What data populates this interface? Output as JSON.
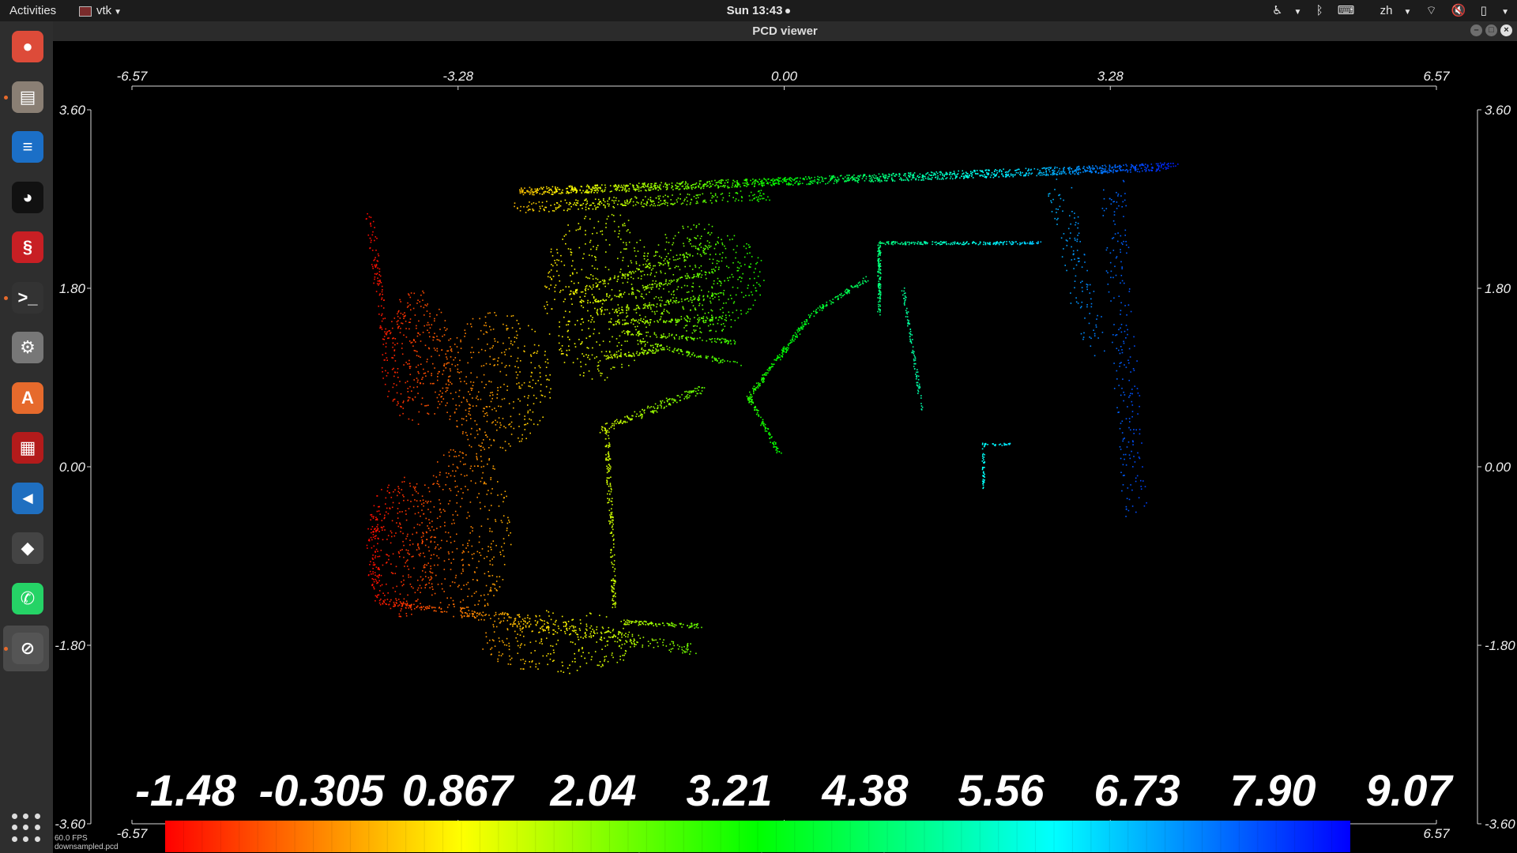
{
  "topbar": {
    "activities": "Activities",
    "app_name": "vtk",
    "clock": "Sun 13:43",
    "input_method": "zh"
  },
  "dock": {
    "items": [
      {
        "name": "chrome",
        "color": "#dd4b39",
        "glyph": "●",
        "running": false
      },
      {
        "name": "files",
        "color": "#8a7f74",
        "glyph": "▤",
        "running": true
      },
      {
        "name": "writer",
        "color": "#1b6fc7",
        "glyph": "≡",
        "running": false
      },
      {
        "name": "qq",
        "color": "#111111",
        "glyph": "◕",
        "running": false
      },
      {
        "name": "netease",
        "color": "#c81f24",
        "glyph": "§",
        "running": false
      },
      {
        "name": "terminal",
        "color": "#333333",
        "glyph": ">_",
        "running": true
      },
      {
        "name": "settings",
        "color": "#777777",
        "glyph": "⚙",
        "running": false
      },
      {
        "name": "software",
        "color": "#e66a2c",
        "glyph": "A",
        "running": false
      },
      {
        "name": "monitor",
        "color": "#b31b1b",
        "glyph": "▦",
        "running": false
      },
      {
        "name": "vscode",
        "color": "#1f6fc0",
        "glyph": "◄",
        "running": false
      },
      {
        "name": "sublime",
        "color": "#444444",
        "glyph": "◆",
        "running": false
      },
      {
        "name": "whatsapp",
        "color": "#25d366",
        "glyph": "✆",
        "running": false
      },
      {
        "name": "vtk-window",
        "color": "#555555",
        "glyph": "⊘",
        "running": true
      }
    ]
  },
  "window": {
    "title": "PCD viewer"
  },
  "axes": {
    "x_top": [
      "-6.57",
      "-3.28",
      "0.00",
      "3.28",
      "6.57"
    ],
    "x_bottom": [
      "-6.57",
      "-3.28",
      "0.00",
      "3.28",
      "6.57"
    ],
    "y_left": [
      "3.60",
      "1.80",
      "0.00",
      "-1.80",
      "-3.60"
    ],
    "y_right": [
      "3.60",
      "1.80",
      "0.00",
      "-1.80",
      "-3.60"
    ],
    "x_range": [
      -6.57,
      6.57
    ],
    "y_range": [
      -3.6,
      3.6
    ]
  },
  "scalar_bar": {
    "labels": [
      "-1.48",
      "-0.305",
      "0.867",
      "2.04",
      "3.21",
      "4.38",
      "5.56",
      "6.73",
      "7.90",
      "9.07"
    ],
    "fraction_labels": [
      "0",
      "1/4",
      "1/2",
      "3/4",
      "1"
    ],
    "range": [
      -1.48,
      9.07
    ],
    "colors": [
      "#ff0000",
      "#ffff00",
      "#00ff00",
      "#00ffff",
      "#0000ff"
    ]
  },
  "status": {
    "fps": "60.0 FPS",
    "file": "downsampled.pcd"
  }
}
